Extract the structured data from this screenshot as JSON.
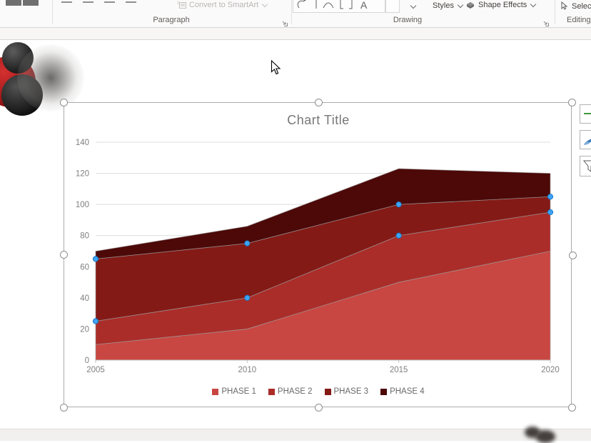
{
  "ribbon": {
    "groups": [
      {
        "id": "paragraph",
        "label": "Paragraph",
        "items": {
          "convert_to_smartart": "Convert to SmartArt"
        }
      },
      {
        "id": "drawing",
        "label": "Drawing",
        "items": {
          "styles": "Styles",
          "shape_effects": "Shape Effects"
        }
      },
      {
        "id": "editing",
        "label": "Editing",
        "items": {
          "select": "Select"
        }
      }
    ]
  },
  "chart_data": {
    "type": "area",
    "stacked": true,
    "title": "Chart Title",
    "categories": [
      "2005",
      "2010",
      "2015",
      "2020"
    ],
    "series": [
      {
        "name": "PHASE 1",
        "color": "#C84742",
        "values": [
          10,
          20,
          50,
          70
        ]
      },
      {
        "name": "PHASE 2",
        "color": "#AA2D29",
        "values": [
          15,
          20,
          30,
          25
        ]
      },
      {
        "name": "PHASE 3",
        "color": "#841A16",
        "values": [
          40,
          35,
          20,
          10
        ]
      },
      {
        "name": "PHASE 4",
        "color": "#4C0908",
        "values": [
          5,
          11,
          23,
          15
        ]
      }
    ],
    "stacked_totals": [
      70,
      86,
      123,
      120
    ],
    "ylim": [
      0,
      140
    ],
    "yticks": [
      0,
      20,
      40,
      60,
      80,
      100,
      120,
      140
    ],
    "grid": true,
    "legend_position": "bottom",
    "selected_point_markers": {
      "series": [
        "PHASE 2",
        "PHASE 3"
      ],
      "color": "#3FA4F6"
    },
    "colors": {
      "gridline": "#dcdcdc",
      "axis": "#c2c2c2",
      "tick_text": "#7f7f7f",
      "outline": "#9e9e9e"
    }
  }
}
